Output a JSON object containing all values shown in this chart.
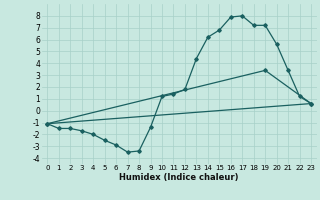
{
  "title": "",
  "xlabel": "Humidex (Indice chaleur)",
  "background_color": "#c8e8e0",
  "grid_color": "#a8d0c8",
  "line_color": "#1a6060",
  "xlim": [
    -0.5,
    23.5
  ],
  "ylim": [
    -4.5,
    9.0
  ],
  "xticks": [
    0,
    1,
    2,
    3,
    4,
    5,
    6,
    7,
    8,
    9,
    10,
    11,
    12,
    13,
    14,
    15,
    16,
    17,
    18,
    19,
    20,
    21,
    22,
    23
  ],
  "yticks": [
    -4,
    -3,
    -2,
    -1,
    0,
    1,
    2,
    3,
    4,
    5,
    6,
    7,
    8
  ],
  "line1_x": [
    0,
    1,
    2,
    3,
    4,
    5,
    6,
    7,
    8,
    9,
    10,
    11,
    12,
    13,
    14,
    15,
    16,
    17,
    18,
    19,
    20,
    21,
    22,
    23
  ],
  "line1_y": [
    -1.1,
    -1.5,
    -1.5,
    -1.7,
    -2.0,
    -2.5,
    -2.9,
    -3.5,
    -3.4,
    -1.4,
    1.2,
    1.4,
    1.8,
    4.4,
    6.2,
    6.8,
    7.9,
    8.0,
    7.2,
    7.2,
    5.6,
    3.4,
    1.2,
    0.6
  ],
  "line3_x": [
    0,
    23
  ],
  "line3_y": [
    -1.1,
    0.6
  ],
  "line4_x": [
    0,
    19,
    23
  ],
  "line4_y": [
    -1.1,
    3.4,
    0.6
  ]
}
